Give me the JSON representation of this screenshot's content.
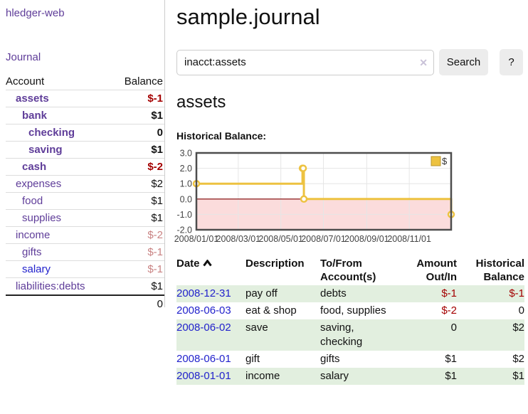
{
  "colors": {
    "link_purple": "#5f3d99",
    "link_blue": "#2222cc",
    "negative_strong": "#a40000",
    "negative_soft": "#c98383",
    "row_stripe_green": "#e2efdf",
    "button_bg": "#ececec",
    "input_border": "#cccccc",
    "clear_icon": "#c9c2d8",
    "divider": "#cccccc"
  },
  "icons": {
    "clear": "✕",
    "sort_asc": "chevron-up",
    "legend_swatch": "square"
  },
  "sidebar": {
    "brand": "hledger-web",
    "journal_link": "Journal",
    "table": {
      "headers": [
        "Account",
        "Balance"
      ],
      "rows": [
        {
          "account": "assets",
          "depth": 1,
          "bold": true,
          "balance": "$-1",
          "balance_style": "neg-strong"
        },
        {
          "account": "bank",
          "depth": 2,
          "bold": true,
          "balance": "$1",
          "balance_style": ""
        },
        {
          "account": "checking",
          "depth": 3,
          "bold": true,
          "balance": "0",
          "balance_style": ""
        },
        {
          "account": "saving",
          "depth": 3,
          "bold": true,
          "balance": "$1",
          "balance_style": ""
        },
        {
          "account": "cash",
          "depth": 2,
          "bold": true,
          "balance": "$-2",
          "balance_style": "neg-strong"
        },
        {
          "account": "expenses",
          "depth": 1,
          "bold": false,
          "balance": "$2",
          "balance_style": ""
        },
        {
          "account": "food",
          "depth": 2,
          "bold": false,
          "balance": "$1",
          "balance_style": ""
        },
        {
          "account": "supplies",
          "depth": 2,
          "bold": false,
          "balance": "$1",
          "balance_style": ""
        },
        {
          "account": "income",
          "depth": 1,
          "bold": false,
          "balance": "$-2",
          "balance_style": "neg-soft"
        },
        {
          "account": "gifts",
          "depth": 2,
          "bold": false,
          "balance": "$-1",
          "balance_style": "neg-soft"
        },
        {
          "account": "salary",
          "depth": 2,
          "bold": false,
          "link_color": "blue",
          "balance": "$-1",
          "balance_style": "neg-soft"
        },
        {
          "account": "liabilities:debts",
          "depth": 1,
          "bold": false,
          "balance": "$1",
          "balance_style": ""
        }
      ],
      "total": "0"
    }
  },
  "header": {
    "title": "sample.journal"
  },
  "search": {
    "value": "inacct:assets",
    "button_label": "Search",
    "help_label": "?"
  },
  "register": {
    "heading": "assets",
    "chart_label": "Historical Balance:",
    "columns": [
      "Date",
      "Description",
      "To/From Account(s)",
      "Amount Out/In",
      "Historical Balance"
    ],
    "rows": [
      {
        "date": "2008-12-31",
        "description": "pay off",
        "accounts": "debts",
        "amount": "$-1",
        "amount_neg": true,
        "balance": "$-1",
        "balance_neg": true
      },
      {
        "date": "2008-06-03",
        "description": "eat & shop",
        "accounts": "food, supplies",
        "amount": "$-2",
        "amount_neg": true,
        "balance": "0",
        "balance_neg": false
      },
      {
        "date": "2008-06-02",
        "description": "save",
        "accounts": "saving, checking",
        "amount": "0",
        "amount_neg": false,
        "balance": "$2",
        "balance_neg": false
      },
      {
        "date": "2008-06-01",
        "description": "gift",
        "accounts": "gifts",
        "amount": "$1",
        "amount_neg": false,
        "balance": "$2",
        "balance_neg": false
      },
      {
        "date": "2008-01-01",
        "description": "income",
        "accounts": "salary",
        "amount": "$1",
        "amount_neg": false,
        "balance": "$1",
        "balance_neg": false
      }
    ]
  },
  "chart_data": {
    "type": "line",
    "step": true,
    "title": "Historical Balance:",
    "series": [
      {
        "name": "$",
        "points": [
          {
            "x": "2008-01-01",
            "y": 1
          },
          {
            "x": "2008-06-01",
            "y": 2
          },
          {
            "x": "2008-06-02",
            "y": 2
          },
          {
            "x": "2008-06-03",
            "y": 0
          },
          {
            "x": "2008-12-31",
            "y": -1
          }
        ]
      }
    ],
    "xlim": [
      "2008-01-01",
      "2008-12-31"
    ],
    "ylim": [
      -2,
      3
    ],
    "x_ticks": [
      {
        "x": "2008-01-01",
        "label": "2008/01/01"
      },
      {
        "x": "2008-03-01",
        "label": "2008/03/01"
      },
      {
        "x": "2008-05-01",
        "label": "2008/05/01"
      },
      {
        "x": "2008-07-01",
        "label": "2008/07/01"
      },
      {
        "x": "2008-09-01",
        "label": "2008/09/01"
      },
      {
        "x": "2008-11-01",
        "label": "2008/11/01"
      }
    ],
    "y_ticks": [
      3.0,
      2.0,
      1.0,
      0.0,
      -1.0,
      -2.0
    ],
    "grid": true,
    "legend": {
      "label": "$",
      "position": "top-right"
    },
    "colors": {
      "line": "#edc240",
      "marker_fill": "#ffffff",
      "negative_fill": "#fbdcdc",
      "zero_line": "#800000",
      "border": "#4d4d4d",
      "grid": "#e6e6e6",
      "tick_text": "#444444",
      "legend_border": "#b89530"
    }
  }
}
